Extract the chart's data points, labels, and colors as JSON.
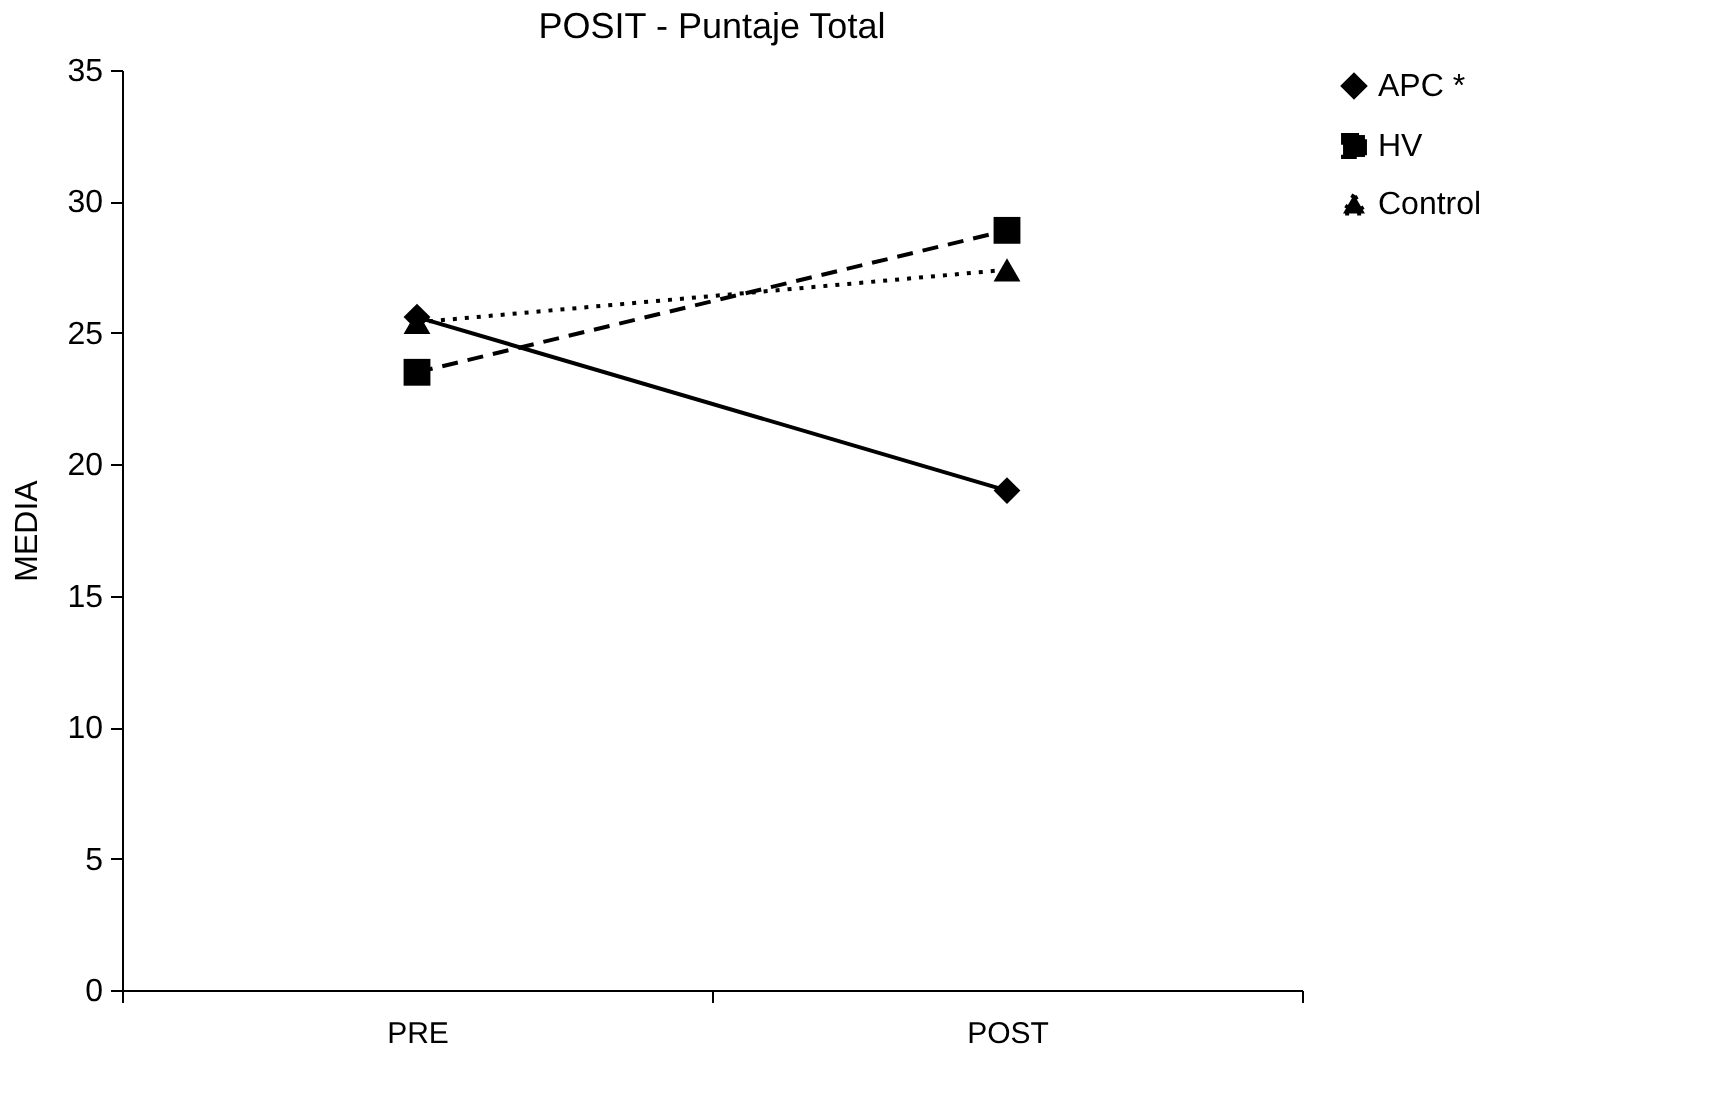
{
  "chart_data": {
    "type": "line",
    "title": "POSIT - Puntaje Total",
    "ylabel": "MEDIA",
    "categories": [
      "PRE",
      "POST"
    ],
    "series": [
      {
        "name": "APC *",
        "color": "#000000",
        "marker": "diamond",
        "line_style": "solid",
        "values": [
          25.6,
          19.0
        ]
      },
      {
        "name": "HV",
        "color": "#000000",
        "marker": "square",
        "line_style": "dashed",
        "values": [
          23.5,
          28.9
        ]
      },
      {
        "name": "Control",
        "color": "#000000",
        "marker": "triangle",
        "line_style": "dotted",
        "values": [
          25.4,
          27.4
        ]
      }
    ],
    "ylim": [
      0,
      35
    ],
    "yticks": [
      0,
      5,
      10,
      15,
      20,
      25,
      30,
      35
    ],
    "grid": false,
    "legend": "top right"
  }
}
